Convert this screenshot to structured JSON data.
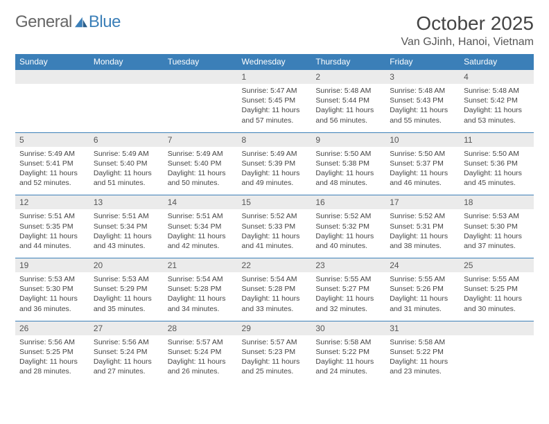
{
  "brand": {
    "part1": "General",
    "part2": "Blue"
  },
  "title": "October 2025",
  "location": "Van GJinh, Hanoi, Vietnam",
  "colors": {
    "header_bg": "#3b7fb8",
    "header_text": "#ffffff",
    "daynum_bg": "#ebebeb",
    "text": "#444444",
    "rule": "#3b7fb8"
  },
  "day_headers": [
    "Sunday",
    "Monday",
    "Tuesday",
    "Wednesday",
    "Thursday",
    "Friday",
    "Saturday"
  ],
  "weeks": [
    [
      null,
      null,
      null,
      {
        "n": "1",
        "sunrise": "5:47 AM",
        "sunset": "5:45 PM",
        "daylight": "11 hours and 57 minutes."
      },
      {
        "n": "2",
        "sunrise": "5:48 AM",
        "sunset": "5:44 PM",
        "daylight": "11 hours and 56 minutes."
      },
      {
        "n": "3",
        "sunrise": "5:48 AM",
        "sunset": "5:43 PM",
        "daylight": "11 hours and 55 minutes."
      },
      {
        "n": "4",
        "sunrise": "5:48 AM",
        "sunset": "5:42 PM",
        "daylight": "11 hours and 53 minutes."
      }
    ],
    [
      {
        "n": "5",
        "sunrise": "5:49 AM",
        "sunset": "5:41 PM",
        "daylight": "11 hours and 52 minutes."
      },
      {
        "n": "6",
        "sunrise": "5:49 AM",
        "sunset": "5:40 PM",
        "daylight": "11 hours and 51 minutes."
      },
      {
        "n": "7",
        "sunrise": "5:49 AM",
        "sunset": "5:40 PM",
        "daylight": "11 hours and 50 minutes."
      },
      {
        "n": "8",
        "sunrise": "5:49 AM",
        "sunset": "5:39 PM",
        "daylight": "11 hours and 49 minutes."
      },
      {
        "n": "9",
        "sunrise": "5:50 AM",
        "sunset": "5:38 PM",
        "daylight": "11 hours and 48 minutes."
      },
      {
        "n": "10",
        "sunrise": "5:50 AM",
        "sunset": "5:37 PM",
        "daylight": "11 hours and 46 minutes."
      },
      {
        "n": "11",
        "sunrise": "5:50 AM",
        "sunset": "5:36 PM",
        "daylight": "11 hours and 45 minutes."
      }
    ],
    [
      {
        "n": "12",
        "sunrise": "5:51 AM",
        "sunset": "5:35 PM",
        "daylight": "11 hours and 44 minutes."
      },
      {
        "n": "13",
        "sunrise": "5:51 AM",
        "sunset": "5:34 PM",
        "daylight": "11 hours and 43 minutes."
      },
      {
        "n": "14",
        "sunrise": "5:51 AM",
        "sunset": "5:34 PM",
        "daylight": "11 hours and 42 minutes."
      },
      {
        "n": "15",
        "sunrise": "5:52 AM",
        "sunset": "5:33 PM",
        "daylight": "11 hours and 41 minutes."
      },
      {
        "n": "16",
        "sunrise": "5:52 AM",
        "sunset": "5:32 PM",
        "daylight": "11 hours and 40 minutes."
      },
      {
        "n": "17",
        "sunrise": "5:52 AM",
        "sunset": "5:31 PM",
        "daylight": "11 hours and 38 minutes."
      },
      {
        "n": "18",
        "sunrise": "5:53 AM",
        "sunset": "5:30 PM",
        "daylight": "11 hours and 37 minutes."
      }
    ],
    [
      {
        "n": "19",
        "sunrise": "5:53 AM",
        "sunset": "5:30 PM",
        "daylight": "11 hours and 36 minutes."
      },
      {
        "n": "20",
        "sunrise": "5:53 AM",
        "sunset": "5:29 PM",
        "daylight": "11 hours and 35 minutes."
      },
      {
        "n": "21",
        "sunrise": "5:54 AM",
        "sunset": "5:28 PM",
        "daylight": "11 hours and 34 minutes."
      },
      {
        "n": "22",
        "sunrise": "5:54 AM",
        "sunset": "5:28 PM",
        "daylight": "11 hours and 33 minutes."
      },
      {
        "n": "23",
        "sunrise": "5:55 AM",
        "sunset": "5:27 PM",
        "daylight": "11 hours and 32 minutes."
      },
      {
        "n": "24",
        "sunrise": "5:55 AM",
        "sunset": "5:26 PM",
        "daylight": "11 hours and 31 minutes."
      },
      {
        "n": "25",
        "sunrise": "5:55 AM",
        "sunset": "5:25 PM",
        "daylight": "11 hours and 30 minutes."
      }
    ],
    [
      {
        "n": "26",
        "sunrise": "5:56 AM",
        "sunset": "5:25 PM",
        "daylight": "11 hours and 28 minutes."
      },
      {
        "n": "27",
        "sunrise": "5:56 AM",
        "sunset": "5:24 PM",
        "daylight": "11 hours and 27 minutes."
      },
      {
        "n": "28",
        "sunrise": "5:57 AM",
        "sunset": "5:24 PM",
        "daylight": "11 hours and 26 minutes."
      },
      {
        "n": "29",
        "sunrise": "5:57 AM",
        "sunset": "5:23 PM",
        "daylight": "11 hours and 25 minutes."
      },
      {
        "n": "30",
        "sunrise": "5:58 AM",
        "sunset": "5:22 PM",
        "daylight": "11 hours and 24 minutes."
      },
      {
        "n": "31",
        "sunrise": "5:58 AM",
        "sunset": "5:22 PM",
        "daylight": "11 hours and 23 minutes."
      },
      null
    ]
  ],
  "labels": {
    "sunrise": "Sunrise:",
    "sunset": "Sunset:",
    "daylight": "Daylight:"
  }
}
